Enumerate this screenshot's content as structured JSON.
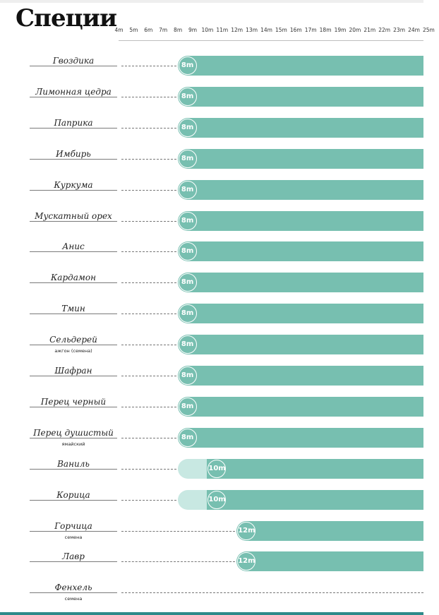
{
  "chart_data": {
    "type": "gantt",
    "title": "Специи",
    "x_ticks": [
      "4m",
      "5m",
      "6m",
      "7m",
      "8m",
      "9m",
      "10m",
      "11m",
      "12m",
      "13m",
      "14m",
      "15m",
      "16m",
      "17m",
      "18m",
      "19m",
      "20m",
      "21m",
      "22m",
      "23m",
      "24m",
      "25m"
    ],
    "x_range": [
      4,
      25
    ],
    "colors": {
      "bar": "#77bfb0",
      "bar_light": "#c8e8e2",
      "badge": "#77bfb0",
      "dash": "#777777"
    },
    "rows": [
      {
        "name": "Гвоздика",
        "note": "",
        "start": 8,
        "start_label": "8m",
        "light_from": null
      },
      {
        "name": "Лимонная цедра",
        "note": "",
        "start": 8,
        "start_label": "8m",
        "light_from": null
      },
      {
        "name": "Паприка",
        "note": "",
        "start": 8,
        "start_label": "8m",
        "light_from": null
      },
      {
        "name": "Имбирь",
        "note": "",
        "start": 8,
        "start_label": "8m",
        "light_from": null
      },
      {
        "name": "Куркума",
        "note": "",
        "start": 8,
        "start_label": "8m",
        "light_from": null
      },
      {
        "name": "Мускатный орех",
        "note": "",
        "start": 8,
        "start_label": "8m",
        "light_from": null
      },
      {
        "name": "Анис",
        "note": "",
        "start": 8,
        "start_label": "8m",
        "light_from": null
      },
      {
        "name": "Кардамон",
        "note": "",
        "start": 8,
        "start_label": "8m",
        "light_from": null
      },
      {
        "name": "Тмин",
        "note": "",
        "start": 8,
        "start_label": "8m",
        "light_from": null
      },
      {
        "name": "Сельдерей",
        "note": "ажгон (семена)",
        "start": 8,
        "start_label": "8m",
        "light_from": null
      },
      {
        "name": "Шафран",
        "note": "",
        "start": 8,
        "start_label": "8m",
        "light_from": null
      },
      {
        "name": "Перец черный",
        "note": "",
        "start": 8,
        "start_label": "8m",
        "light_from": null
      },
      {
        "name": "Перец душистый",
        "note": "ямайский",
        "start": 8,
        "start_label": "8m",
        "light_from": null
      },
      {
        "name": "Ваниль",
        "note": "",
        "start": 10,
        "start_label": "10m",
        "light_from": 8
      },
      {
        "name": "Корица",
        "note": "",
        "start": 10,
        "start_label": "10m",
        "light_from": 8
      },
      {
        "name": "Горчица",
        "note": "семена",
        "start": 12,
        "start_label": "12m",
        "light_from": null
      },
      {
        "name": "Лавр",
        "note": "",
        "start": 12,
        "start_label": "12m",
        "light_from": null
      },
      {
        "name": "Фенхель",
        "note": "семена",
        "start": null,
        "start_label": "",
        "light_from": null
      }
    ]
  }
}
